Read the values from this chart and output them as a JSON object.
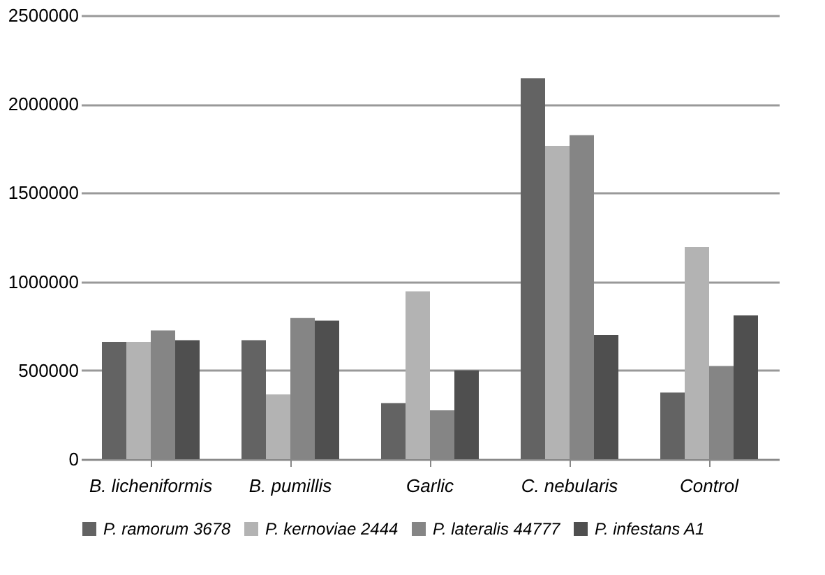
{
  "chart_data": {
    "type": "bar",
    "categories": [
      "B. licheniformis",
      "B. pumillis",
      "Garlic",
      "C. nebularis",
      "Control"
    ],
    "series": [
      {
        "name": "P. ramorum 3678",
        "color": "#636363",
        "values": [
          660000,
          670000,
          315000,
          2145000,
          375000
        ]
      },
      {
        "name": "P. kernoviae 2444",
        "color": "#b3b3b3",
        "values": [
          660000,
          365000,
          945000,
          1765000,
          1195000
        ]
      },
      {
        "name": "P. lateralis 44777",
        "color": "#858585",
        "values": [
          725000,
          795000,
          275000,
          1825000,
          525000
        ]
      },
      {
        "name": "P. infestans A1",
        "color": "#4f4f4f",
        "values": [
          670000,
          780000,
          500000,
          700000,
          810000
        ]
      }
    ],
    "ylim": [
      0,
      2500000
    ],
    "yticks": [
      0,
      500000,
      1000000,
      1500000,
      2000000,
      2500000
    ],
    "grid": "y",
    "legend": "bottom"
  }
}
